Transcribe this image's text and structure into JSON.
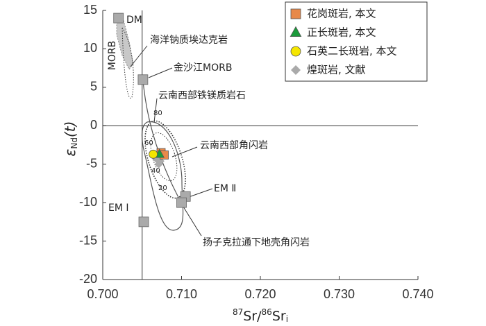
{
  "chart_data": {
    "type": "scatter",
    "xlabel": [
      "87",
      "Sr/",
      "86",
      "Sr",
      "i"
    ],
    "ylabel": [
      "ε",
      "Nd",
      "(t)"
    ],
    "xlim": [
      0.7,
      0.74
    ],
    "ylim": [
      -20,
      15
    ],
    "xticks": [
      {
        "value": 0.7,
        "label": "0.700"
      },
      {
        "value": 0.71,
        "label": "0.710"
      },
      {
        "value": 0.72,
        "label": "0.720"
      },
      {
        "value": 0.73,
        "label": "0.730"
      },
      {
        "value": 0.74,
        "label": "0.740"
      }
    ],
    "yticks": [
      -20,
      -15,
      -10,
      -5,
      0,
      5,
      10,
      15
    ],
    "hlines": [
      0
    ],
    "vlines": [
      0.705
    ],
    "series": [
      {
        "name": "花岗斑岩, 本文",
        "color": "#e8894a",
        "marker": "square",
        "x": [
          0.7074,
          0.7078
        ],
        "values": [
          -3.5,
          -3.8
        ]
      },
      {
        "name": "正长斑岩, 本文",
        "color": "#1a9a3a",
        "marker": "triangle",
        "x": [
          0.7072
        ],
        "values": [
          -3.7
        ]
      },
      {
        "name": "石英二长斑岩, 本文",
        "color": "#f5e600",
        "marker": "circle",
        "x": [
          0.7064
        ],
        "values": [
          -3.7
        ]
      },
      {
        "name": "煌斑岩, 文献",
        "color": "#aaaaaa",
        "marker": "diamond",
        "x": [
          0.7068,
          0.7071,
          0.7073
        ],
        "values": [
          -4.3,
          -5.0,
          -4.6
        ]
      }
    ],
    "reference_points": {
      "color": "#aaaaaa",
      "x": [
        0.702,
        0.7051,
        0.7052,
        0.7105,
        0.71
      ],
      "values": [
        14,
        6,
        -12.5,
        -9.2,
        -10
      ]
    },
    "annotations": [
      "DM",
      "MORB",
      "海洋钠质埃达克岩",
      "金沙江MORB",
      "云南西部铁镁质岩石",
      "云南西部角闪岩",
      "EM Ⅱ",
      "EM Ⅰ",
      "扬子克拉通下地壳角闪岩"
    ],
    "mixing_labels": [
      "80",
      "60",
      "40",
      "20"
    ]
  }
}
